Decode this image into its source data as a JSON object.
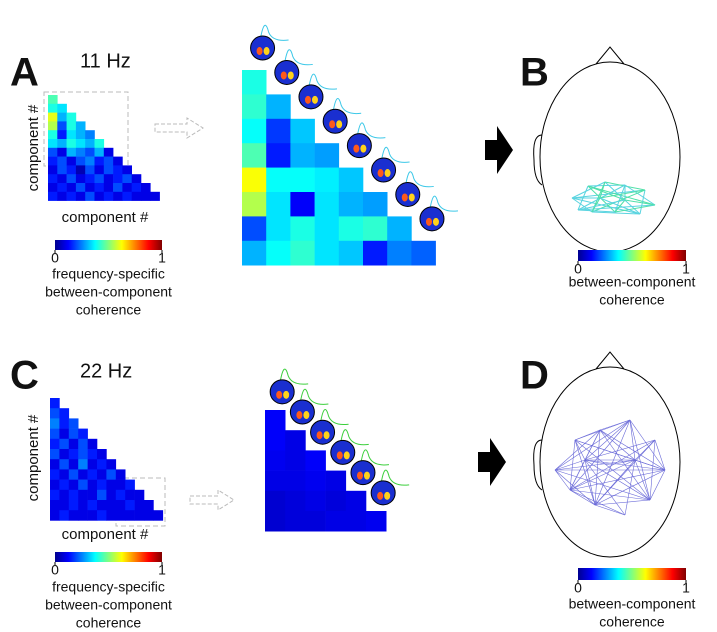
{
  "panels": [
    {
      "letter": "A",
      "frequency": "11 Hz",
      "y_label": "component #",
      "x_label": "component #",
      "matrix": [
        [
          0.45
        ],
        [
          0.4,
          0.35
        ],
        [
          0.6,
          0.3,
          0.4
        ],
        [
          0.55,
          0.2,
          0.4,
          0.3
        ],
        [
          0.4,
          0.15,
          0.35,
          0.3,
          0.25
        ],
        [
          0.35,
          0.3,
          0.4,
          0.35,
          0.3,
          0.4
        ],
        [
          0.2,
          0.1,
          0.3,
          0.25,
          0.2,
          0.3,
          0.1
        ],
        [
          0.15,
          0.2,
          0.1,
          0.2,
          0.25,
          0.15,
          0.2,
          0.1
        ],
        [
          0.1,
          0.2,
          0.15,
          0.05,
          0.2,
          0.1,
          0.2,
          0.15,
          0.1
        ],
        [
          0.15,
          0.1,
          0.2,
          0.1,
          0.15,
          0.2,
          0.1,
          0.15,
          0.2,
          0.1
        ],
        [
          0.1,
          0.15,
          0.1,
          0.2,
          0.1,
          0.15,
          0.1,
          0.2,
          0.1,
          0.15,
          0.1
        ],
        [
          0.15,
          0.1,
          0.15,
          0.1,
          0.2,
          0.1,
          0.15,
          0.1,
          0.15,
          0.1,
          0.1,
          0.1
        ]
      ],
      "zoom_matrix": [
        [
          0.4
        ],
        [
          0.42,
          0.3
        ],
        [
          0.38,
          0.18,
          0.32
        ],
        [
          0.45,
          0.15,
          0.3,
          0.28
        ],
        [
          0.62,
          0.38,
          0.38,
          0.36,
          0.32
        ],
        [
          0.55,
          0.35,
          0.12,
          0.35,
          0.3,
          0.28
        ],
        [
          0.2,
          0.35,
          0.4,
          0.35,
          0.4,
          0.42,
          0.3
        ],
        [
          0.3,
          0.38,
          0.42,
          0.35,
          0.32,
          0.15,
          0.25,
          0.22
        ]
      ],
      "colorbar": {
        "range": [
          0,
          1
        ],
        "ticks": [
          0,
          1
        ],
        "caption": [
          "frequency-specific",
          "between-component",
          "coherence"
        ]
      }
    },
    {
      "letter": "B",
      "colorbar": {
        "range": [
          0,
          1
        ],
        "ticks": [
          0,
          1
        ],
        "caption": [
          "between-component",
          "coherence"
        ]
      }
    },
    {
      "letter": "C",
      "frequency": "22 Hz",
      "y_label": "component #",
      "x_label": "component #",
      "matrix": [
        [
          0.15
        ],
        [
          0.2,
          0.15
        ],
        [
          0.25,
          0.15,
          0.2
        ],
        [
          0.2,
          0.1,
          0.2,
          0.15
        ],
        [
          0.15,
          0.2,
          0.1,
          0.2,
          0.1
        ],
        [
          0.2,
          0.1,
          0.15,
          0.2,
          0.15,
          0.1
        ],
        [
          0.1,
          0.2,
          0.1,
          0.25,
          0.1,
          0.15,
          0.1
        ],
        [
          0.15,
          0.1,
          0.2,
          0.1,
          0.15,
          0.1,
          0.2,
          0.1
        ],
        [
          0.1,
          0.15,
          0.1,
          0.2,
          0.1,
          0.15,
          0.1,
          0.1,
          0.15
        ],
        [
          0.15,
          0.1,
          0.15,
          0.1,
          0.1,
          0.2,
          0.1,
          0.15,
          0.1,
          0.1
        ],
        [
          0.1,
          0.1,
          0.15,
          0.1,
          0.15,
          0.1,
          0.1,
          0.1,
          0.15,
          0.1,
          0.1
        ],
        [
          0.1,
          0.15,
          0.1,
          0.1,
          0.1,
          0.15,
          0.1,
          0.1,
          0.1,
          0.1,
          0.1,
          0.1
        ]
      ],
      "zoom_matrix": [
        [
          0.12
        ],
        [
          0.12,
          0.1
        ],
        [
          0.11,
          0.1,
          0.12
        ],
        [
          0.1,
          0.1,
          0.11,
          0.1
        ],
        [
          0.08,
          0.09,
          0.1,
          0.09,
          0.1
        ],
        [
          0.08,
          0.09,
          0.09,
          0.1,
          0.1,
          0.11
        ]
      ],
      "colorbar": {
        "range": [
          0,
          1
        ],
        "ticks": [
          0,
          1
        ],
        "caption": [
          "frequency-specific",
          "between-component",
          "coherence"
        ]
      }
    },
    {
      "letter": "D",
      "colorbar": {
        "range": [
          0,
          1
        ],
        "ticks": [
          0,
          1
        ],
        "caption": [
          "between-component",
          "coherence"
        ]
      }
    }
  ]
}
